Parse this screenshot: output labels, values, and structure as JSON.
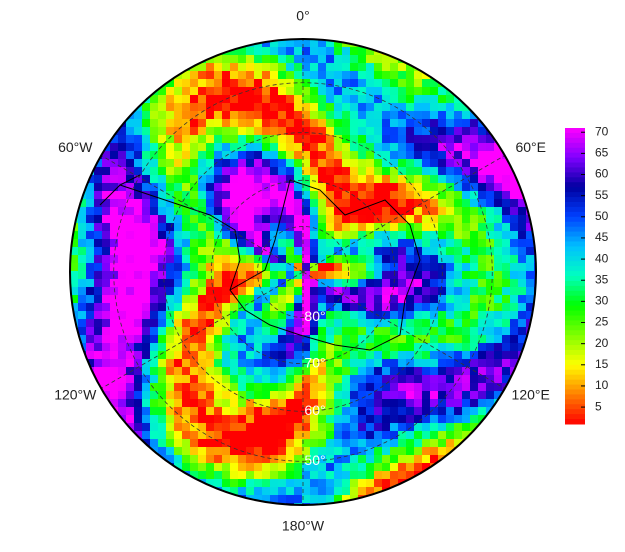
{
  "chart_data": {
    "type": "polar_map",
    "meridians": [
      {
        "value": 0,
        "label": "0°"
      },
      {
        "value": 60,
        "label": "60°E"
      },
      {
        "value": 120,
        "label": "120°E"
      },
      {
        "value": 180,
        "label": "180°W"
      },
      {
        "value": -120,
        "label": "120°W"
      },
      {
        "value": -60,
        "label": "60°W"
      }
    ],
    "parallels": [
      {
        "value": 80,
        "label": "80°"
      },
      {
        "value": 70,
        "label": "70°"
      },
      {
        "value": 60,
        "label": "60°"
      },
      {
        "value": 50,
        "label": "50°"
      }
    ],
    "colorbar_lim": [
      1,
      71
    ],
    "colorbar_ticks": [
      5,
      10,
      15,
      20,
      25,
      30,
      35,
      40,
      45,
      50,
      55,
      60,
      65,
      70
    ],
    "colors": [
      "#ff0000",
      "#ff8000",
      "#ffff00",
      "#80ff00",
      "#00ff00",
      "#00ffc0",
      "#00c0ff",
      "#0040ff",
      "#0000a0",
      "#8000ff",
      "#ff00ff"
    ]
  }
}
